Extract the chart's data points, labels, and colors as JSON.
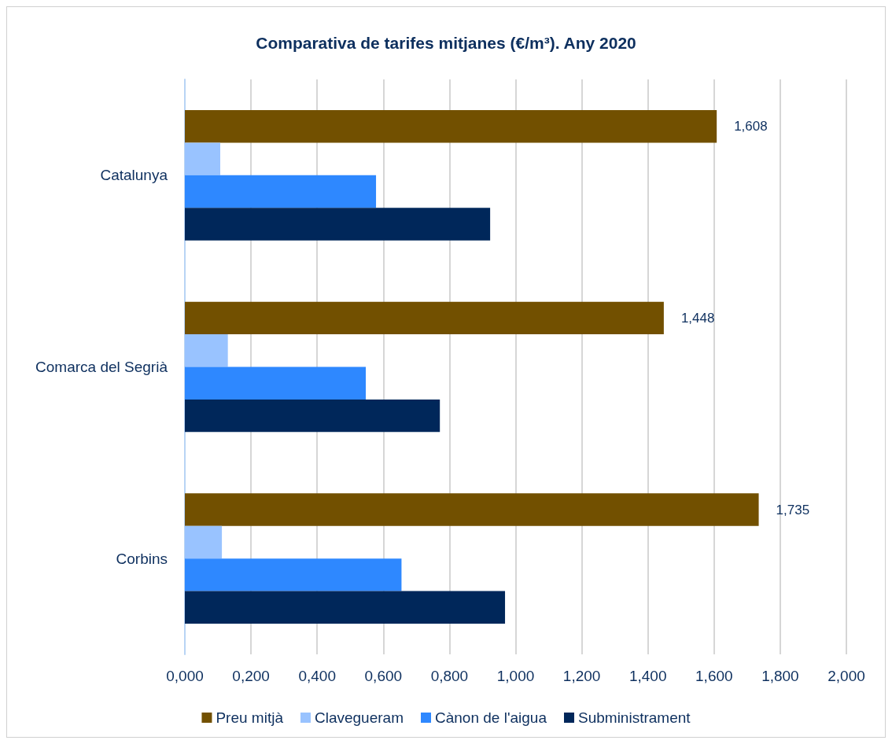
{
  "chart_data": {
    "type": "bar",
    "orientation": "horizontal",
    "title": "Comparativa de tarifes mitjanes (€/m³). Any 2020",
    "categories": [
      "Catalunya",
      "Comarca del Segrià",
      "Corbins"
    ],
    "series": [
      {
        "name": "Preu mitjà",
        "color": "#725000",
        "values": [
          1.608,
          1.448,
          1.735
        ],
        "value_labels": [
          "1,608",
          "1,448",
          "1,735"
        ]
      },
      {
        "name": "Clavegueram",
        "color": "#99c3ff",
        "values": [
          0.107,
          0.13,
          0.112
        ]
      },
      {
        "name": "Cànon de l'aigua",
        "color": "#2e88ff",
        "values": [
          0.578,
          0.547,
          0.655
        ]
      },
      {
        "name": "Subministrament",
        "color": "#00275a",
        "values": [
          0.923,
          0.771,
          0.968
        ]
      }
    ],
    "xlim": [
      0,
      2
    ],
    "xticks": [
      {
        "value": 0,
        "label": "0,000"
      },
      {
        "value": 0.2,
        "label": "0,200"
      },
      {
        "value": 0.4,
        "label": "0,400"
      },
      {
        "value": 0.6,
        "label": "0,600"
      },
      {
        "value": 0.8,
        "label": "0,800"
      },
      {
        "value": 1,
        "label": "1,000"
      },
      {
        "value": 1.2,
        "label": "1,200"
      },
      {
        "value": 1.4,
        "label": "1,400"
      },
      {
        "value": 1.6,
        "label": "1,600"
      },
      {
        "value": 1.8,
        "label": "1,800"
      },
      {
        "value": 2,
        "label": "2,000"
      }
    ],
    "grid": "x",
    "legend": "bottom"
  }
}
